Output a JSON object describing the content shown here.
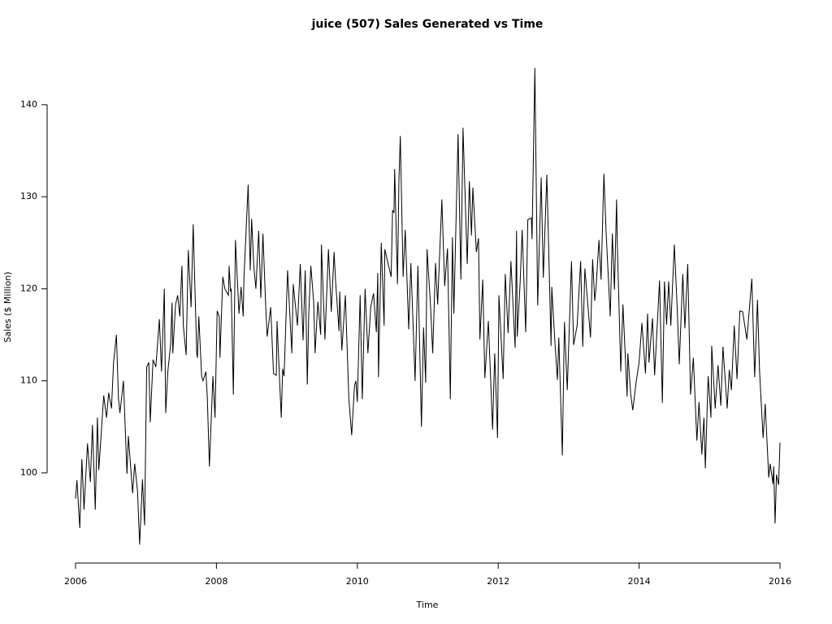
{
  "chart_data": {
    "type": "line",
    "title": "juice (507) Sales Generated vs Time",
    "x_label": "Time",
    "y_label": "Sales ($ Million)",
    "color": "#000000",
    "xlim": [
      2005.6,
      2016.4
    ],
    "ylim": [
      90.2,
      146.1
    ],
    "xticks": [
      2006,
      2008,
      2010,
      2012,
      2014,
      2016
    ],
    "yticks": [
      100,
      110,
      120,
      130,
      140
    ],
    "x": [
      2006.0,
      2006.02,
      2006.06,
      2006.09,
      2006.12,
      2006.17,
      2006.21,
      2006.24,
      2006.28,
      2006.31,
      2006.33,
      2006.4,
      2006.44,
      2006.47,
      2006.51,
      2006.54,
      2006.58,
      2006.61,
      2006.63,
      2006.68,
      2006.73,
      2006.75,
      2006.81,
      2006.84,
      2006.88,
      2006.91,
      2006.95,
      2006.98,
      2007.01,
      2007.04,
      2007.06,
      2007.1,
      2007.14,
      2007.19,
      2007.22,
      2007.26,
      2007.28,
      2007.31,
      2007.35,
      2007.37,
      2007.38,
      2007.42,
      2007.45,
      2007.48,
      2007.51,
      2007.53,
      2007.57,
      2007.6,
      2007.64,
      2007.67,
      2007.72,
      2007.73,
      2007.75,
      2007.79,
      2007.81,
      2007.85,
      2007.87,
      2007.9,
      2007.95,
      2007.98,
      2008.01,
      2008.04,
      2008.05,
      2008.09,
      2008.12,
      2008.17,
      2008.18,
      2008.2,
      2008.21,
      2008.24,
      2008.27,
      2008.32,
      2008.35,
      2008.38,
      2008.39,
      2008.45,
      2008.48,
      2008.5,
      2008.53,
      2008.56,
      2008.6,
      2008.63,
      2008.66,
      2008.7,
      2008.72,
      2008.77,
      2008.81,
      2008.85,
      2008.86,
      2008.92,
      2008.94,
      2008.96,
      2009.01,
      2009.07,
      2009.09,
      2009.15,
      2009.19,
      2009.23,
      2009.26,
      2009.29,
      2009.31,
      2009.34,
      2009.38,
      2009.4,
      2009.44,
      2009.48,
      2009.49,
      2009.54,
      2009.59,
      2009.63,
      2009.67,
      2009.69,
      2009.74,
      2009.75,
      2009.78,
      2009.83,
      2009.88,
      2009.92,
      2009.96,
      2009.98,
      2010.0,
      2010.04,
      2010.07,
      2010.11,
      2010.15,
      2010.19,
      2010.23,
      2010.27,
      2010.29,
      2010.3,
      2010.34,
      2010.38,
      2010.39,
      2010.48,
      2010.5,
      2010.52,
      2010.53,
      2010.57,
      2010.59,
      2010.61,
      2010.65,
      2010.68,
      2010.73,
      2010.76,
      2010.82,
      2010.86,
      2010.91,
      2010.94,
      2010.97,
      2010.99,
      2011.04,
      2011.07,
      2011.11,
      2011.14,
      2011.2,
      2011.24,
      2011.28,
      2011.32,
      2011.35,
      2011.37,
      2011.43,
      2011.47,
      2011.5,
      2011.56,
      2011.59,
      2011.62,
      2011.64,
      2011.69,
      2011.72,
      2011.74,
      2011.78,
      2011.81,
      2011.86,
      2011.92,
      2011.95,
      2011.99,
      2012.01,
      2012.07,
      2012.1,
      2012.14,
      2012.18,
      2012.24,
      2012.26,
      2012.27,
      2012.31,
      2012.34,
      2012.39,
      2012.42,
      2012.47,
      2012.48,
      2012.52,
      2012.56,
      2012.61,
      2012.64,
      2012.69,
      2012.75,
      2012.76,
      2012.8,
      2012.84,
      2012.86,
      2012.91,
      2012.94,
      2012.98,
      2013.04,
      2013.07,
      2013.12,
      2013.17,
      2013.2,
      2013.23,
      2013.31,
      2013.34,
      2013.37,
      2013.39,
      2013.43,
      2013.46,
      2013.5,
      2013.53,
      2013.59,
      2013.62,
      2013.65,
      2013.68,
      2013.69,
      2013.74,
      2013.77,
      2013.83,
      2013.84,
      2013.88,
      2013.91,
      2013.96,
      2014.0,
      2014.04,
      2014.09,
      2014.12,
      2014.14,
      2014.19,
      2014.22,
      2014.29,
      2014.33,
      2014.36,
      2014.39,
      2014.42,
      2014.45,
      2014.5,
      2014.54,
      2014.57,
      2014.62,
      2014.65,
      2014.69,
      2014.73,
      2014.77,
      2014.82,
      2014.85,
      2014.89,
      2014.92,
      2014.94,
      2014.98,
      2015.02,
      2015.03,
      2015.08,
      2015.12,
      2015.16,
      2015.19,
      2015.25,
      2015.28,
      2015.31,
      2015.35,
      2015.39,
      2015.43,
      2015.47,
      2015.53,
      2015.6,
      2015.64,
      2015.68,
      2015.71,
      2015.76,
      2015.79,
      2015.84,
      2015.86,
      2015.9,
      2015.91,
      2015.93,
      2015.95,
      2015.98,
      2016.0
    ],
    "values": [
      97.2,
      99.2,
      94,
      101.5,
      96,
      103.2,
      99,
      105.2,
      96,
      106,
      100.3,
      108.4,
      106,
      108.7,
      107,
      112,
      115,
      108,
      106.5,
      110,
      99.9,
      104,
      97.8,
      101,
      98,
      92.2,
      99.3,
      94.3,
      111.5,
      112,
      105.5,
      112.3,
      111.5,
      116.7,
      111,
      120,
      106.5,
      111,
      114,
      118.5,
      113,
      118.3,
      119.3,
      117,
      122.5,
      116,
      112.8,
      124.2,
      118,
      127,
      113,
      112.5,
      117,
      110.5,
      110,
      111,
      108.3,
      100.7,
      110.5,
      106,
      117.6,
      117,
      112.5,
      121.3,
      120,
      119.3,
      122.5,
      119.7,
      120,
      108.5,
      125.3,
      117.3,
      120.2,
      117,
      121,
      131.3,
      122,
      127.6,
      122.5,
      120,
      126.3,
      119,
      126,
      118,
      114.8,
      118,
      110.8,
      110.6,
      116.5,
      106,
      111.3,
      110.5,
      122,
      113,
      120.5,
      116,
      122.7,
      114.4,
      122,
      109.6,
      117.2,
      122.5,
      118.6,
      113,
      118.6,
      115,
      124.8,
      114.5,
      124.3,
      117.5,
      124,
      121,
      115.4,
      119.7,
      113.3,
      119.3,
      108,
      104.1,
      109.5,
      110,
      107.7,
      119.3,
      108,
      120,
      113,
      118,
      119.5,
      115.3,
      121.7,
      110.4,
      125,
      116,
      124.3,
      121.3,
      128.5,
      128.3,
      133,
      120.5,
      131.6,
      136.6,
      121.3,
      126.4,
      115.6,
      122.8,
      110,
      122.5,
      105,
      115.8,
      109.8,
      124.3,
      118,
      113,
      122.8,
      118.3,
      129.7,
      120.3,
      124.4,
      108,
      125.6,
      117.3,
      136.8,
      121,
      137.5,
      122.7,
      131.7,
      125.8,
      131,
      124,
      125.5,
      114.5,
      121,
      110.3,
      116.5,
      104.7,
      113,
      103.8,
      119.3,
      110.2,
      121.6,
      115.2,
      123,
      113.6,
      126.3,
      114.8,
      120.5,
      126.4,
      115.3,
      127.5,
      127.7,
      125.4,
      144,
      118.2,
      132.1,
      121.2,
      132.4,
      113.8,
      120.2,
      114.8,
      110.1,
      114.7,
      101.9,
      116.4,
      109,
      123,
      113.9,
      116,
      123,
      113.7,
      122.2,
      114.7,
      123.2,
      118.7,
      120.3,
      125.3,
      121,
      132.5,
      126.4,
      117,
      126,
      119.9,
      129.7,
      125,
      111,
      118.3,
      108.3,
      113,
      108.6,
      106.8,
      110,
      112,
      116.3,
      110.8,
      117.3,
      112,
      116.8,
      110.6,
      120.9,
      107.6,
      120.8,
      116.1,
      120.8,
      116,
      124.8,
      118,
      111.8,
      121.6,
      115.7,
      122.7,
      108.5,
      112.5,
      103.5,
      107.7,
      102,
      106,
      100.5,
      110.5,
      106,
      113.8,
      107,
      111.7,
      107.3,
      113.7,
      107,
      111.2,
      109,
      116,
      110.2,
      117.6,
      117.5,
      114.5,
      121.1,
      110.4,
      118.8,
      111,
      103.8,
      107.5,
      99.5,
      101,
      98.8,
      100.7,
      94.5,
      99.8,
      98.7,
      103.3
    ]
  }
}
